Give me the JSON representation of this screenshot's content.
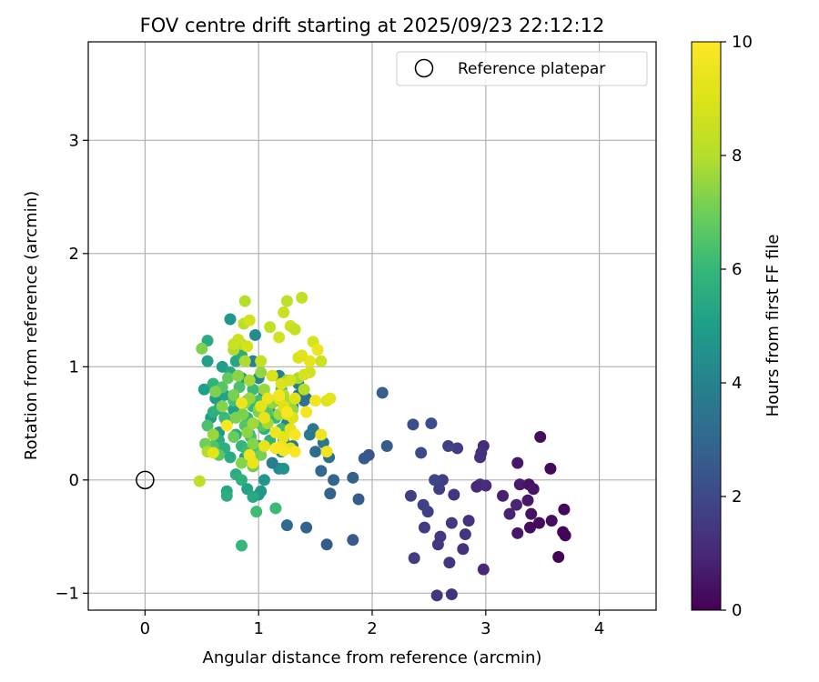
{
  "chart_data": {
    "type": "scatter",
    "title": "FOV centre drift starting at 2025/09/23 22:12:12",
    "xlabel": "Angular distance from reference (arcmin)",
    "ylabel": "Rotation from reference (arcmin)",
    "xlim": [
      -0.5,
      4.5
    ],
    "ylim": [
      -1.15,
      3.87
    ],
    "xticks": [
      0,
      1,
      2,
      3,
      4
    ],
    "xtick_labels": [
      "0",
      "1",
      "2",
      "3",
      "4"
    ],
    "yticks": [
      -1,
      0,
      1,
      2,
      3
    ],
    "ytick_labels": [
      "−1",
      "0",
      "1",
      "2",
      "3"
    ],
    "grid": true,
    "legend": {
      "position": "top-right",
      "entries": [
        "Reference platepar"
      ]
    },
    "reference_point": {
      "x": 0,
      "y": 0,
      "label": "Reference platepar"
    },
    "colorbar": {
      "label": "Hours from first FF file",
      "range": [
        0,
        10
      ],
      "ticks": [
        0,
        2,
        4,
        6,
        8,
        10
      ],
      "tick_labels": [
        "0",
        "2",
        "4",
        "6",
        "8",
        "10"
      ],
      "colormap": "viridis"
    },
    "points": [
      [
        3.48,
        0.38,
        0.3
      ],
      [
        3.57,
        0.1,
        0.2
      ],
      [
        3.28,
        0.15,
        0.6
      ],
      [
        3.15,
        -0.14,
        0.8
      ],
      [
        3.3,
        -0.04,
        0.7
      ],
      [
        3.38,
        -0.04,
        0.4
      ],
      [
        3.42,
        -0.08,
        0.5
      ],
      [
        3.37,
        -0.18,
        0.6
      ],
      [
        3.27,
        -0.22,
        0.9
      ],
      [
        3.21,
        -0.3,
        0.9
      ],
      [
        3.4,
        -0.3,
        0.4
      ],
      [
        3.39,
        -0.42,
        0.3
      ],
      [
        3.47,
        -0.38,
        0.2
      ],
      [
        3.58,
        -0.36,
        0.3
      ],
      [
        3.69,
        -0.26,
        0.2
      ],
      [
        3.68,
        -0.46,
        0.1
      ],
      [
        3.7,
        -0.49,
        0.1
      ],
      [
        3.64,
        -0.68,
        0.1
      ],
      [
        3.28,
        -0.47,
        0.6
      ],
      [
        2.98,
        0.3,
        1.1
      ],
      [
        2.96,
        0.24,
        1.2
      ],
      [
        2.95,
        0.2,
        1.3
      ],
      [
        3.0,
        -0.05,
        1.1
      ],
      [
        2.95,
        -0.04,
        1.2
      ],
      [
        2.92,
        -0.06,
        1.0
      ],
      [
        2.85,
        -0.36,
        1.3
      ],
      [
        2.82,
        -0.48,
        1.4
      ],
      [
        2.8,
        -0.61,
        1.2
      ],
      [
        2.98,
        -0.79,
        1.0
      ],
      [
        2.75,
        0.28,
        1.6
      ],
      [
        2.67,
        0.3,
        1.8
      ],
      [
        2.7,
        -0.38,
        1.5
      ],
      [
        2.72,
        -0.13,
        1.4
      ],
      [
        2.62,
        0.0,
        1.7
      ],
      [
        2.55,
        0.0,
        1.9
      ],
      [
        2.59,
        -0.08,
        1.7
      ],
      [
        2.49,
        -0.28,
        1.7
      ],
      [
        2.45,
        -0.22,
        1.8
      ],
      [
        2.46,
        -0.42,
        1.6
      ],
      [
        2.6,
        -0.5,
        1.5
      ],
      [
        2.58,
        -0.57,
        1.4
      ],
      [
        2.68,
        -0.73,
        1.4
      ],
      [
        2.7,
        -1.01,
        1.3
      ],
      [
        2.57,
        -1.02,
        1.4
      ],
      [
        2.37,
        -0.69,
        1.6
      ],
      [
        2.34,
        -0.14,
        1.7
      ],
      [
        2.36,
        0.49,
        2.2
      ],
      [
        2.52,
        0.5,
        2.1
      ],
      [
        2.43,
        0.24,
        2.0
      ],
      [
        2.09,
        0.77,
        2.7
      ],
      [
        2.13,
        0.3,
        2.6
      ],
      [
        1.97,
        0.22,
        2.4
      ],
      [
        1.93,
        0.19,
        2.5
      ],
      [
        1.88,
        -0.17,
        2.6
      ],
      [
        1.83,
        0.02,
        2.8
      ],
      [
        1.83,
        -0.53,
        2.5
      ],
      [
        1.66,
        0.0,
        2.9
      ],
      [
        1.63,
        -0.12,
        2.8
      ],
      [
        1.6,
        -0.57,
        2.6
      ],
      [
        1.55,
        0.08,
        3.0
      ],
      [
        1.42,
        -0.42,
        2.9
      ],
      [
        1.25,
        -0.4,
        3.1
      ],
      [
        1.5,
        0.25,
        3.2
      ],
      [
        1.62,
        0.2,
        3.3
      ],
      [
        1.57,
        0.33,
        3.6
      ],
      [
        1.4,
        0.7,
        3.5
      ],
      [
        1.35,
        0.85,
        3.8
      ],
      [
        1.3,
        0.65,
        3.9
      ],
      [
        1.25,
        0.5,
        4.0
      ],
      [
        1.22,
        0.35,
        4.2
      ],
      [
        1.2,
        0.25,
        4.5
      ],
      [
        1.18,
        0.1,
        4.3
      ],
      [
        1.22,
        0.1,
        4.6
      ],
      [
        1.1,
        0.6,
        4.2
      ],
      [
        1.05,
        0.75,
        4.4
      ],
      [
        1.0,
        0.9,
        4.1
      ],
      [
        0.95,
        1.05,
        4.0
      ],
      [
        0.97,
        1.28,
        4.4
      ],
      [
        0.75,
        1.42,
        4.7
      ],
      [
        0.8,
        1.15,
        4.8
      ],
      [
        0.85,
        0.9,
        4.5
      ],
      [
        0.9,
        0.7,
        4.6
      ],
      [
        0.95,
        0.5,
        4.3
      ],
      [
        1.0,
        0.3,
        4.5
      ],
      [
        1.05,
        0.0,
        4.7
      ],
      [
        1.0,
        -0.13,
        4.9
      ],
      [
        1.02,
        -0.1,
        4.8
      ],
      [
        0.62,
        0.72,
        4.9
      ],
      [
        0.52,
        0.8,
        5.0
      ],
      [
        0.55,
        1.05,
        5.1
      ],
      [
        0.58,
        0.55,
        4.9
      ],
      [
        0.65,
        0.42,
        4.8
      ],
      [
        0.72,
        0.5,
        5.0
      ],
      [
        0.78,
        0.62,
        5.1
      ],
      [
        0.68,
        1.0,
        5.0
      ],
      [
        1.45,
        0.4,
        3.7
      ],
      [
        1.48,
        0.45,
        3.6
      ],
      [
        1.35,
        0.75,
        3.4
      ],
      [
        1.42,
        0.72,
        3.3
      ],
      [
        1.15,
        0.7,
        3.6
      ],
      [
        1.18,
        0.92,
        3.9
      ],
      [
        1.3,
        0.3,
        3.7
      ],
      [
        0.88,
        0.2,
        4.8
      ],
      [
        0.92,
        0.4,
        4.0
      ],
      [
        1.12,
        0.15,
        3.8
      ],
      [
        0.55,
        1.23,
        5.5
      ],
      [
        0.6,
        0.85,
        5.8
      ],
      [
        0.65,
        0.63,
        5.5
      ],
      [
        0.7,
        0.28,
        5.7
      ],
      [
        0.72,
        -0.1,
        5.3
      ],
      [
        0.72,
        -0.14,
        5.6
      ],
      [
        0.8,
        0.05,
        5.6
      ],
      [
        0.85,
        0.0,
        5.7
      ],
      [
        0.9,
        -0.08,
        5.2
      ],
      [
        0.95,
        -0.15,
        5.4
      ],
      [
        0.98,
        -0.28,
        6.2
      ],
      [
        0.85,
        -0.58,
        6.0
      ],
      [
        1.15,
        -0.25,
        6.1
      ],
      [
        0.65,
        0.35,
        5.6
      ],
      [
        0.7,
        0.75,
        5.2
      ],
      [
        0.75,
        0.95,
        5.4
      ],
      [
        0.8,
        1.05,
        5.3
      ],
      [
        0.85,
        1.1,
        5.5
      ],
      [
        0.9,
        0.55,
        5.9
      ],
      [
        0.95,
        0.65,
        6.0
      ],
      [
        1.05,
        0.45,
        5.7
      ],
      [
        1.1,
        0.35,
        5.8
      ],
      [
        0.8,
        0.4,
        5.6
      ],
      [
        0.85,
        0.3,
        5.9
      ],
      [
        0.75,
        0.2,
        5.5
      ],
      [
        0.9,
        0.25,
        6.2
      ],
      [
        0.95,
        0.8,
        6.1
      ],
      [
        1.0,
        0.7,
        6.3
      ],
      [
        1.15,
        0.55,
        6.0
      ],
      [
        1.2,
        0.45,
        6.2
      ],
      [
        1.25,
        0.6,
        5.9
      ],
      [
        1.2,
        0.8,
        6.1
      ],
      [
        0.7,
        0.55,
        6.1
      ],
      [
        0.78,
        0.7,
        6.3
      ],
      [
        0.83,
        0.82,
        6.4
      ],
      [
        0.88,
        0.48,
        6.5
      ],
      [
        0.93,
        0.38,
        6.3
      ],
      [
        0.98,
        0.28,
        6.4
      ],
      [
        1.03,
        0.48,
        6.6
      ],
      [
        1.08,
        0.6,
        6.5
      ],
      [
        0.6,
        0.3,
        6.5
      ],
      [
        0.55,
        0.48,
        6.4
      ],
      [
        0.65,
        0.22,
        6.7
      ],
      [
        0.68,
        0.82,
        6.6
      ],
      [
        0.73,
        0.9,
        6.8
      ],
      [
        0.78,
        0.38,
        6.9
      ],
      [
        0.6,
        0.6,
        5.7
      ],
      [
        0.53,
        0.32,
        7.0
      ],
      [
        0.5,
        1.16,
        7.2
      ],
      [
        0.62,
        0.78,
        7.2
      ],
      [
        0.68,
        0.65,
        7.3
      ],
      [
        0.78,
        0.75,
        7.1
      ],
      [
        0.82,
        0.92,
        7.4
      ],
      [
        0.86,
        0.58,
        7.2
      ],
      [
        0.88,
        0.68,
        7.5
      ],
      [
        0.92,
        0.72,
        7.6
      ],
      [
        0.95,
        0.32,
        7.3
      ],
      [
        1.0,
        0.62,
        7.4
      ],
      [
        1.05,
        0.8,
        7.6
      ],
      [
        1.12,
        0.68,
        7.5
      ],
      [
        1.18,
        0.58,
        7.7
      ],
      [
        1.0,
        0.6,
        7.3
      ],
      [
        0.9,
        0.42,
        7.4
      ],
      [
        0.8,
        0.55,
        7.2
      ],
      [
        1.02,
        0.22,
        7.1
      ],
      [
        0.95,
        0.12,
        7.0
      ],
      [
        0.85,
        0.15,
        7.3
      ],
      [
        1.28,
        0.68,
        7.8
      ],
      [
        1.22,
        0.75,
        7.9
      ],
      [
        1.08,
        0.5,
        7.8
      ],
      [
        0.95,
        0.5,
        7.7
      ],
      [
        0.78,
        1.15,
        7.9
      ],
      [
        0.85,
        1.2,
        8.0
      ],
      [
        0.88,
        1.05,
        7.9
      ],
      [
        0.92,
        0.88,
        7.8
      ],
      [
        1.3,
        0.62,
        7.6
      ],
      [
        1.25,
        0.88,
        7.7
      ],
      [
        1.35,
        0.9,
        7.8
      ],
      [
        1.4,
        0.8,
        8.0
      ],
      [
        1.02,
        0.95,
        7.5
      ],
      [
        0.88,
        1.58,
        8.0
      ],
      [
        0.87,
        1.38,
        8.1
      ],
      [
        1.38,
        1.61,
        8.3
      ],
      [
        1.25,
        1.58,
        8.2
      ],
      [
        1.1,
        1.35,
        8.3
      ],
      [
        1.22,
        1.48,
        8.5
      ],
      [
        1.28,
        1.36,
        8.6
      ],
      [
        1.32,
        1.33,
        8.4
      ],
      [
        0.6,
        0.4,
        7.6
      ],
      [
        0.48,
        -0.01,
        8.2
      ],
      [
        0.55,
        0.25,
        7.9
      ],
      [
        0.82,
        1.24,
        8.6
      ],
      [
        0.92,
        1.41,
        8.7
      ],
      [
        0.78,
        1.2,
        8.5
      ],
      [
        0.9,
        1.18,
        8.8
      ],
      [
        1.02,
        1.05,
        8.4
      ],
      [
        1.18,
        1.26,
        8.7
      ],
      [
        1.35,
        1.08,
        8.9
      ],
      [
        1.48,
        1.22,
        8.8
      ],
      [
        1.55,
        1.05,
        8.6
      ],
      [
        1.45,
        0.95,
        8.7
      ],
      [
        1.4,
        0.93,
        8.8
      ],
      [
        1.12,
        0.92,
        8.9
      ],
      [
        1.2,
        0.85,
        9.0
      ],
      [
        1.28,
        0.88,
        8.7
      ],
      [
        1.32,
        0.72,
        9.1
      ],
      [
        1.22,
        0.65,
        9.0
      ],
      [
        1.18,
        0.72,
        9.2
      ],
      [
        1.25,
        0.58,
        9.0
      ],
      [
        1.3,
        0.55,
        9.1
      ],
      [
        1.28,
        0.45,
        9.3
      ],
      [
        1.22,
        0.38,
        9.2
      ],
      [
        1.28,
        0.28,
        9.1
      ],
      [
        1.2,
        0.3,
        9.4
      ],
      [
        1.15,
        0.42,
        9.5
      ],
      [
        1.05,
        0.55,
        9.3
      ],
      [
        1.05,
        0.3,
        9.3
      ],
      [
        0.95,
        0.15,
        9.4
      ],
      [
        0.92,
        0.22,
        9.6
      ],
      [
        1.02,
        0.65,
        9.2
      ],
      [
        1.08,
        0.72,
        9.4
      ],
      [
        1.6,
        0.7,
        9.0
      ],
      [
        1.63,
        0.72,
        9.2
      ],
      [
        1.55,
        0.4,
        9.5
      ],
      [
        1.6,
        0.25,
        9.6
      ],
      [
        1.52,
        1.15,
        9.5
      ],
      [
        1.45,
        1.05,
        9.3
      ],
      [
        1.38,
        1.1,
        9.1
      ],
      [
        1.5,
        0.7,
        9.6
      ],
      [
        1.42,
        0.6,
        9.7
      ],
      [
        1.32,
        0.4,
        9.8
      ],
      [
        1.22,
        0.26,
        9.8
      ],
      [
        1.32,
        0.25,
        9.9
      ],
      [
        1.15,
        0.28,
        9.9
      ],
      [
        1.18,
        0.75,
        9.7
      ],
      [
        1.25,
        0.6,
        9.8
      ],
      [
        0.72,
        0.48,
        9.9
      ],
      [
        0.6,
        0.24,
        9.2
      ],
      [
        0.85,
        0.68,
        9.5
      ]
    ]
  }
}
